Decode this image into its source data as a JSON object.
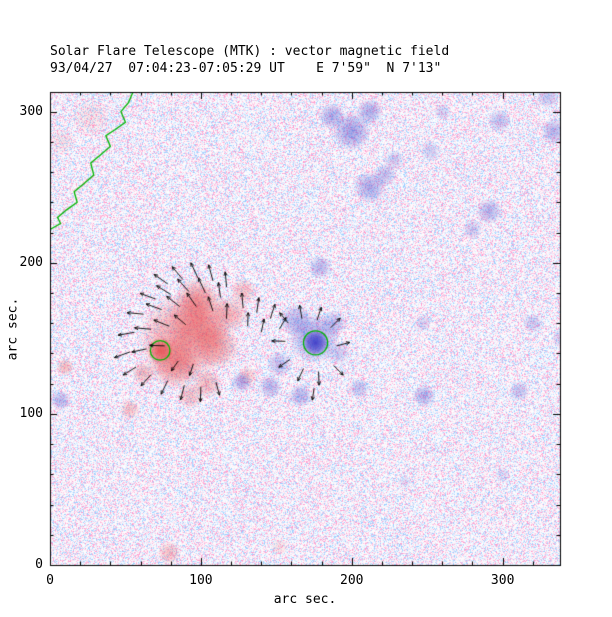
{
  "chart_data": {
    "type": "heatmap",
    "title": "Solar Flare Telescope (MTK) : vector magnetic field",
    "subtitle": "93/04/27  07:04:23-07:05:29 UT    E 7'59\"  N 7'13\"",
    "xlabel": "arc sec.",
    "ylabel": "arc sec.",
    "xlim": [
      0,
      338
    ],
    "ylim": [
      0,
      313
    ],
    "x_ticks": [
      0,
      100,
      200,
      300
    ],
    "y_ticks": [
      0,
      100,
      200,
      300
    ],
    "minor_tick_interval": 20,
    "colors": {
      "positive": "#e64646",
      "negative": "#3c3cc8",
      "contour": "#00b400",
      "vector": "#000000",
      "axis": "#000000",
      "background": "#ffffff"
    },
    "regions_format": "[x_arcsec, y_arcsec, radius_arcsec, polarity(+1 red / -1 blue), strength_0_to_1]",
    "regions": [
      [
        88,
        150,
        30,
        1,
        0.5
      ],
      [
        100,
        163,
        22,
        1,
        0.5
      ],
      [
        83,
        134,
        18,
        1,
        0.5
      ],
      [
        110,
        145,
        16,
        1,
        0.45
      ],
      [
        97,
        177,
        14,
        1,
        0.4
      ],
      [
        73,
        142,
        9,
        1,
        0.8
      ],
      [
        120,
        166,
        12,
        1,
        0.35
      ],
      [
        128,
        181,
        9,
        1,
        0.3
      ],
      [
        104,
        120,
        10,
        1,
        0.35
      ],
      [
        93,
        112,
        9,
        1,
        0.3
      ],
      [
        62,
        127,
        8,
        1,
        0.35
      ],
      [
        131,
        125,
        7,
        1,
        0.25
      ],
      [
        10,
        131,
        6,
        1,
        0.35
      ],
      [
        53,
        103,
        7,
        1,
        0.3
      ],
      [
        79,
        8,
        8,
        1,
        0.3
      ],
      [
        27,
        296,
        13,
        1,
        0.12
      ],
      [
        8,
        280,
        9,
        1,
        0.12
      ],
      [
        152,
        12,
        6,
        1,
        0.15
      ],
      [
        176,
        147,
        9,
        -1,
        0.92
      ],
      [
        175,
        150,
        17,
        -1,
        0.45
      ],
      [
        163,
        162,
        11,
        -1,
        0.35
      ],
      [
        152,
        133,
        9,
        -1,
        0.3
      ],
      [
        188,
        160,
        9,
        -1,
        0.3
      ],
      [
        191,
        140,
        8,
        -1,
        0.25
      ],
      [
        146,
        118,
        8,
        -1,
        0.35
      ],
      [
        127,
        121,
        7,
        -1,
        0.4
      ],
      [
        166,
        112,
        8,
        -1,
        0.35
      ],
      [
        205,
        117,
        7,
        -1,
        0.3
      ],
      [
        248,
        112,
        8,
        -1,
        0.35
      ],
      [
        311,
        115,
        7,
        -1,
        0.3
      ],
      [
        179,
        197,
        8,
        -1,
        0.35
      ],
      [
        212,
        250,
        11,
        -1,
        0.4
      ],
      [
        222,
        258,
        8,
        -1,
        0.3
      ],
      [
        200,
        287,
        13,
        -1,
        0.45
      ],
      [
        187,
        297,
        9,
        -1,
        0.4
      ],
      [
        212,
        300,
        9,
        -1,
        0.4
      ],
      [
        228,
        268,
        7,
        -1,
        0.25
      ],
      [
        291,
        234,
        9,
        -1,
        0.35
      ],
      [
        280,
        222,
        7,
        -1,
        0.25
      ],
      [
        334,
        287,
        9,
        -1,
        0.35
      ],
      [
        320,
        160,
        7,
        -1,
        0.25
      ],
      [
        340,
        150,
        8,
        -1,
        0.25
      ],
      [
        7,
        109,
        7,
        -1,
        0.35
      ],
      [
        247,
        160,
        6,
        -1,
        0.2
      ],
      [
        298,
        294,
        8,
        -1,
        0.3
      ],
      [
        252,
        274,
        7,
        -1,
        0.22
      ],
      [
        330,
        310,
        8,
        -1,
        0.28
      ],
      [
        260,
        300,
        6,
        -1,
        0.22
      ],
      [
        300,
        60,
        6,
        -1,
        0.15
      ],
      [
        235,
        55,
        5,
        -1,
        0.15
      ]
    ],
    "contours": [
      {
        "shape": "circle",
        "x": 73,
        "y": 142,
        "r": 6.5
      },
      {
        "shape": "circle",
        "x": 176,
        "y": 147,
        "r": 8
      },
      {
        "shape": "path",
        "points": [
          [
            55,
            313
          ],
          [
            52,
            306
          ],
          [
            47,
            300
          ],
          [
            50,
            293
          ],
          [
            43,
            288
          ],
          [
            37,
            284
          ],
          [
            40,
            277
          ],
          [
            33,
            271
          ],
          [
            27,
            266
          ],
          [
            29,
            258
          ],
          [
            22,
            252
          ],
          [
            16,
            247
          ],
          [
            18,
            240
          ],
          [
            11,
            235
          ],
          [
            5,
            230
          ],
          [
            7,
            226
          ],
          [
            0,
            222
          ]
        ]
      }
    ],
    "vectors_format": "[x_arcsec, y_arcsec, angle_deg_ccw_from_east, length_arcsec]",
    "vectors": [
      [
        78,
        186,
        145,
        11
      ],
      [
        88,
        189,
        130,
        11
      ],
      [
        98,
        190,
        115,
        11
      ],
      [
        108,
        188,
        105,
        11
      ],
      [
        117,
        184,
        95,
        10
      ],
      [
        70,
        176,
        160,
        11
      ],
      [
        80,
        179,
        148,
        11
      ],
      [
        92,
        181,
        132,
        11
      ],
      [
        103,
        180,
        115,
        11
      ],
      [
        113,
        177,
        98,
        10
      ],
      [
        62,
        166,
        175,
        11
      ],
      [
        74,
        169,
        160,
        11
      ],
      [
        86,
        171,
        142,
        11
      ],
      [
        97,
        171,
        125,
        11
      ],
      [
        108,
        168,
        108,
        10
      ],
      [
        117,
        163,
        88,
        10
      ],
      [
        56,
        154,
        190,
        11
      ],
      [
        67,
        156,
        175,
        11
      ],
      [
        79,
        158,
        158,
        11
      ],
      [
        90,
        159,
        140,
        10
      ],
      [
        53,
        141,
        200,
        11
      ],
      [
        64,
        143,
        192,
        10
      ],
      [
        76,
        145,
        178,
        10
      ],
      [
        57,
        131,
        212,
        10
      ],
      [
        67,
        126,
        228,
        10
      ],
      [
        78,
        122,
        244,
        10
      ],
      [
        89,
        119,
        256,
        10
      ],
      [
        100,
        118,
        268,
        10
      ],
      [
        110,
        121,
        285,
        9
      ],
      [
        85,
        135,
        235,
        8
      ],
      [
        95,
        133,
        252,
        8
      ],
      [
        128,
        170,
        95,
        10
      ],
      [
        137,
        167,
        82,
        10
      ],
      [
        146,
        163,
        72,
        10
      ],
      [
        152,
        156,
        60,
        9
      ],
      [
        140,
        154,
        78,
        9
      ],
      [
        131,
        158,
        88,
        9
      ],
      [
        158,
        160,
        130,
        9
      ],
      [
        167,
        163,
        100,
        9
      ],
      [
        177,
        162,
        72,
        9
      ],
      [
        186,
        157,
        45,
        9
      ],
      [
        156,
        148,
        178,
        9
      ],
      [
        190,
        145,
        15,
        9
      ],
      [
        159,
        136,
        215,
        9
      ],
      [
        168,
        130,
        245,
        9
      ],
      [
        178,
        128,
        272,
        9
      ],
      [
        188,
        132,
        315,
        9
      ],
      [
        175,
        117,
        262,
        8
      ]
    ]
  }
}
